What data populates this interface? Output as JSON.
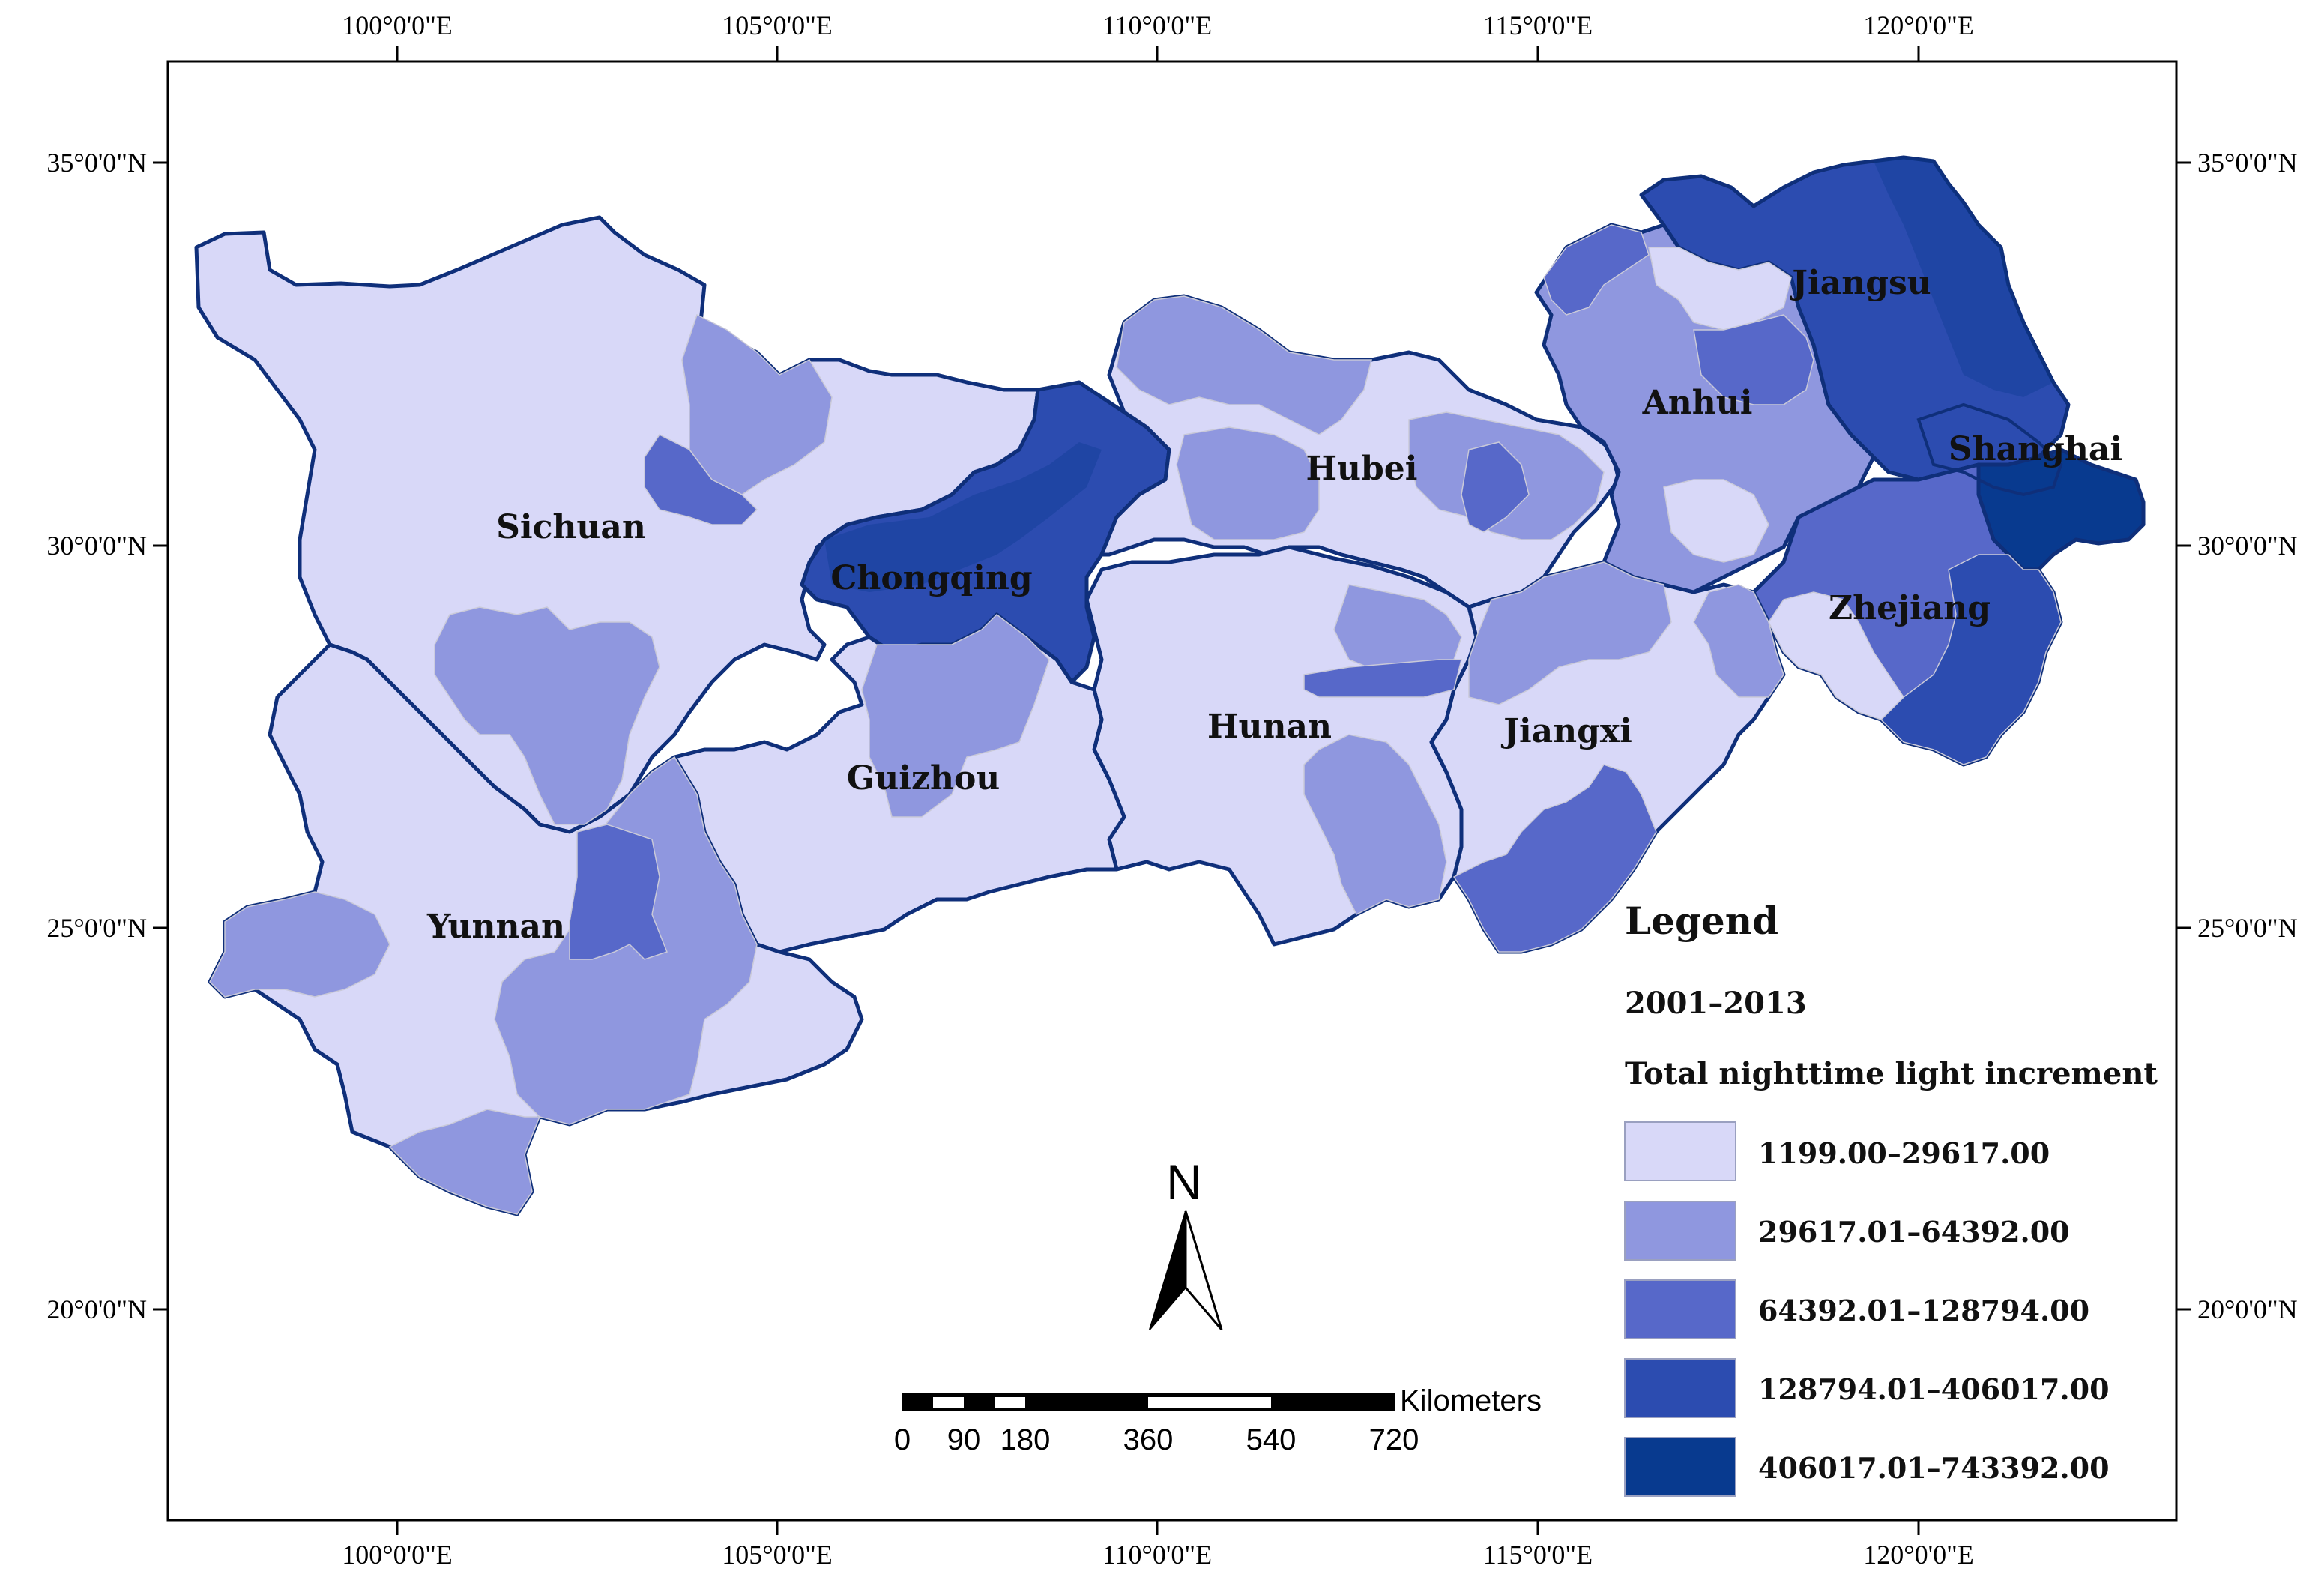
{
  "map": {
    "top_axis_labels": [
      "100°0'0\"E",
      "105°0'0\"E",
      "110°0'0\"E",
      "115°0'0\"E",
      "120°0'0\"E"
    ],
    "bottom_axis_labels": [
      "100°0'0\"E",
      "105°0'0\"E",
      "110°0'0\"E",
      "115°0'0\"E",
      "120°0'0\"E"
    ],
    "left_axis_labels": [
      "35°0'0\"N",
      "30°0'0\"N",
      "25°0'0\"N",
      "20°0'0\"N"
    ],
    "right_axis_labels": [
      "35°0'0\"N",
      "30°0'0\"N",
      "25°0'0\"N",
      "20°0'0\"N"
    ],
    "provinces": [
      {
        "name": "Sichuan"
      },
      {
        "name": "Chongqing"
      },
      {
        "name": "Hubei"
      },
      {
        "name": "Anhui"
      },
      {
        "name": "Jiangsu"
      },
      {
        "name": "Shanghai"
      },
      {
        "name": "Zhejiang"
      },
      {
        "name": "Jiangxi"
      },
      {
        "name": "Hunan"
      },
      {
        "name": "Guizhou"
      },
      {
        "name": "Yunnan"
      }
    ]
  },
  "legend": {
    "title": "Legend",
    "period": "2001–2013",
    "variable": "Total nighttime light increment",
    "classes": [
      {
        "label": "1199.00–29617.00",
        "color": "#d8d8f8"
      },
      {
        "label": "29617.01–64392.00",
        "color": "#8f97df"
      },
      {
        "label": "64392.01–128794.00",
        "color": "#5768c9"
      },
      {
        "label": "128794.01–406017.00",
        "color": "#2c4cb0"
      },
      {
        "label": "406017.01–743392.00",
        "color": "#083a8f"
      }
    ]
  },
  "north_arrow": {
    "label": "N"
  },
  "scale_bar": {
    "unit": "Kilometers",
    "ticks": [
      "0",
      "90",
      "180",
      "360",
      "540",
      "720"
    ]
  }
}
